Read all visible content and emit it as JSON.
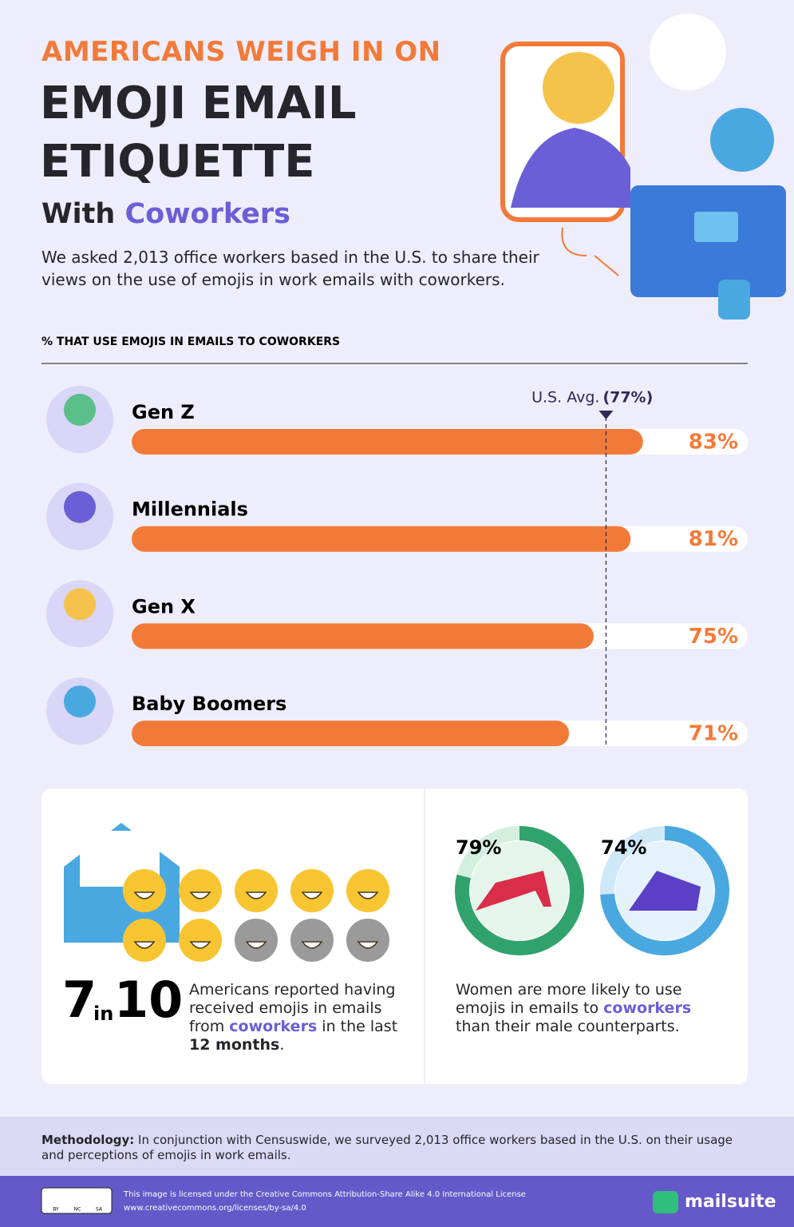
{
  "header": {
    "kicker": "AMERICANS WEIGH IN ON",
    "title_lines": [
      "EMOJI EMAIL",
      "ETIQUETTE"
    ],
    "subtitle_parts": [
      "With",
      "Coworkers"
    ],
    "intro": "We asked 2,013 office workers based in the U.S. to share their views on the use of emojis in work emails with coworkers."
  },
  "chart_data": [
    {
      "type": "hbar",
      "title": "% THAT USE EMOJIS IN EMAILS TO COWORKERS",
      "categories": [
        "Gen Z",
        "Millennials",
        "Gen X",
        "Baby Boomers"
      ],
      "values": [
        83,
        81,
        75,
        71
      ],
      "value_labels": [
        "83%",
        "81%",
        "75%",
        "71%"
      ],
      "color": "#f27a38",
      "xlim": [
        0,
        100
      ],
      "average": {
        "label": "U.S. Avg.",
        "value": 77,
        "value_label": "(77%)"
      }
    },
    {
      "type": "ring",
      "values": [
        79,
        74
      ],
      "value_labels": [
        "79%",
        "74%"
      ],
      "colors": [
        "#2fa36b",
        "#4aa8e0"
      ],
      "xlim": [
        0,
        100
      ]
    }
  ],
  "stats": {
    "numerator": 7,
    "joiner": "in",
    "denominator": 10,
    "left_parts": [
      "Americans reported having received emojis in emails from ",
      "coworkers",
      " in the last ",
      "12 months",
      "."
    ],
    "right_parts": [
      "Women are more likely to use emojis in emails to ",
      "coworkers",
      " than their male counterparts."
    ]
  },
  "methodology": {
    "label": "Methodology:",
    "text": "In conjunction with Censuswide, we surveyed 2,013 office workers based in the U.S. on their usage and perceptions of emojis in work emails."
  },
  "footer": {
    "license_lines": [
      "This image is licensed under the Creative Commons Attribution-Share Alike 4.0 International License",
      "www.creativecommons.org/licenses/by-sa/4.0"
    ],
    "badge": [
      "BY",
      "NC",
      "SA"
    ],
    "brand": "mailsuite"
  }
}
